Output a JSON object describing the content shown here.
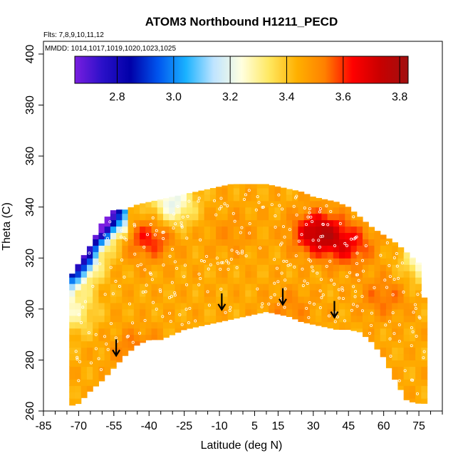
{
  "chart_data": {
    "type": "heatmap",
    "title": "ATOM3 Northbound H1211_PECD",
    "subtitle_flights": "Flts: 7,8,9,10,11,12",
    "subtitle_dates": "MMDD: 1014,1017,1019,1020,1023,1025",
    "xlabel": "Latitude (deg N)",
    "ylabel": "Theta (C)",
    "xlim": [
      -85,
      85
    ],
    "ylim": [
      260,
      405
    ],
    "x_ticks": [
      -85,
      -70,
      -55,
      -40,
      -25,
      -10,
      5,
      15,
      30,
      45,
      60,
      75
    ],
    "y_ticks": [
      260,
      280,
      300,
      320,
      340,
      360,
      380,
      400
    ],
    "colorbar": {
      "range": [
        2.65,
        3.83
      ],
      "ticks": [
        2.8,
        3.0,
        3.2,
        3.4,
        3.6,
        3.8
      ],
      "colors": [
        "#7a1ee0",
        "#2a10c8",
        "#0000a8",
        "#0055ee",
        "#1ab2ff",
        "#bfe4ff",
        "#ffffe0",
        "#ffe860",
        "#ffb000",
        "#ff8000",
        "#ff0000",
        "#c80000",
        "#a01010"
      ]
    },
    "envelope": {
      "lat": [
        -74,
        -70,
        -65,
        -60,
        -55,
        -50,
        -45,
        -40,
        -35,
        -30,
        -25,
        -20,
        -15,
        -10,
        -5,
        0,
        5,
        10,
        15,
        20,
        25,
        30,
        35,
        40,
        45,
        50,
        55,
        60,
        65,
        70,
        75,
        78
      ],
      "theta_bottom": [
        262,
        263,
        268,
        272,
        277,
        282,
        286,
        288,
        288,
        290,
        292,
        293,
        294,
        295,
        296,
        297,
        298,
        299,
        298,
        297,
        295,
        294,
        293,
        292,
        292,
        291,
        287,
        281,
        272,
        264,
        263,
        263
      ],
      "theta_top": [
        312,
        318,
        325,
        334,
        339,
        339,
        341,
        342,
        343,
        344,
        345,
        346,
        347,
        348,
        349,
        349,
        349,
        349,
        348,
        347,
        346,
        344,
        343,
        342,
        340,
        336,
        332,
        329,
        326,
        322,
        318,
        300
      ]
    },
    "field_model": {
      "base_value": 3.45,
      "hotspots": [
        {
          "lat": -40,
          "theta": 328,
          "value": 3.62
        },
        {
          "lat": -45,
          "theta": 284,
          "value": 3.55
        },
        {
          "lat": 32,
          "theta": 330,
          "value": 3.75
        },
        {
          "lat": 45,
          "theta": 325,
          "value": 3.63
        },
        {
          "lat": 60,
          "theta": 305,
          "value": 3.55
        },
        {
          "lat": -5,
          "theta": 330,
          "value": 3.5
        },
        {
          "lat": 20,
          "theta": 300,
          "value": 3.52
        }
      ],
      "coldspots": [
        {
          "lat": -62,
          "theta": 336,
          "value": 2.7
        },
        {
          "lat": -70,
          "theta": 320,
          "value": 3.05
        },
        {
          "lat": -72,
          "theta": 300,
          "value": 3.28
        },
        {
          "lat": -30,
          "theta": 342,
          "value": 3.2
        },
        {
          "lat": 78,
          "theta": 320,
          "value": 3.2
        }
      ]
    },
    "arrows": [
      {
        "lat": -54,
        "theta": 282
      },
      {
        "lat": -9,
        "theta": 300
      },
      {
        "lat": 17,
        "theta": 302
      },
      {
        "lat": 39,
        "theta": 297
      }
    ]
  }
}
